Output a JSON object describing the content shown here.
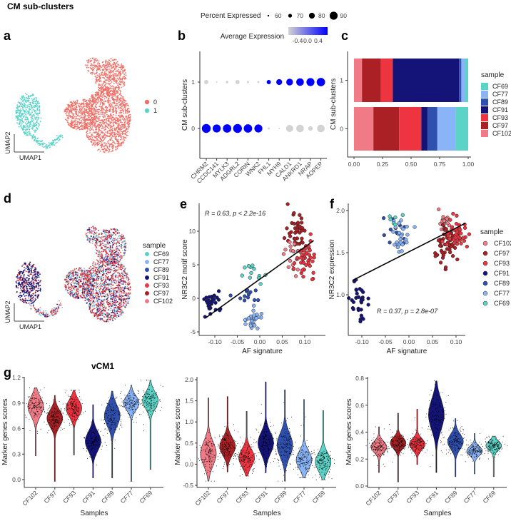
{
  "title": "CM sub-clusters",
  "colors": {
    "cluster0": "#F07068",
    "cluster1": "#5BD3C7",
    "CF69": "#5BD3C7",
    "CF77": "#8AB4F8",
    "CF89": "#3050B0",
    "CF91": "#141478",
    "CF93": "#EE3440",
    "CF97": "#AA2024",
    "CF102": "#F07A85",
    "expr_low": "#D3D3D3",
    "expr_high": "#0000FF"
  },
  "chart_data": [
    {
      "panel": "a",
      "type": "scatter",
      "xlabel": "UMAP1",
      "ylabel": "UMAP2",
      "legend": [
        "0",
        "1"
      ],
      "legend_position": "right",
      "approx_cells": {
        "0": 2400,
        "1": 520
      }
    },
    {
      "panel": "b",
      "type": "scatter",
      "subtype": "dotplot",
      "ylabel": "CM sub-clusters",
      "categories": [
        "CHRM2",
        "CCDC141",
        "MYLK3",
        "ADGRL2",
        "CORIN",
        "WNK2",
        "FHL1",
        "MYH9",
        "CALD1",
        "ANKRD1",
        "NRAP",
        "AOPEP"
      ],
      "rows": [
        "1",
        "0"
      ],
      "size_legend": {
        "title": "Percent Expressed",
        "values": [
          "60",
          "70",
          "80",
          "90"
        ]
      },
      "color_legend": {
        "title": "Average Expression",
        "ticks": [
          "-0.4",
          "0.0",
          "0.4"
        ],
        "range": [
          -0.5,
          0.5
        ]
      },
      "series": [
        {
          "name": "1",
          "avg_expression": [
            -0.5,
            -0.5,
            -0.5,
            -0.5,
            -0.5,
            -0.5,
            0.5,
            0.5,
            0.5,
            0.5,
            0.5,
            0.5
          ],
          "pct_expressed": [
            72,
            56,
            64,
            72,
            62,
            62,
            72,
            80,
            84,
            88,
            90,
            92
          ]
        },
        {
          "name": "0",
          "avg_expression": [
            0.5,
            0.5,
            0.5,
            0.5,
            0.5,
            0.5,
            -0.5,
            -0.5,
            -0.5,
            -0.5,
            -0.5,
            -0.5
          ],
          "pct_expressed": [
            94,
            90,
            92,
            94,
            92,
            90,
            62,
            56,
            86,
            88,
            74,
            88
          ]
        }
      ]
    },
    {
      "panel": "c",
      "type": "bar",
      "orientation": "horizontal",
      "stacked": true,
      "ylabel": "CM sub-clusters",
      "xlim": [
        0,
        1
      ],
      "xticks": [
        "0.00",
        "0.25",
        "0.50",
        "0.75",
        "1.00"
      ],
      "categories": [
        "1",
        "0"
      ],
      "legend_title": "sample",
      "legend": [
        "CF69",
        "CF77",
        "CF89",
        "CF91",
        "CF93",
        "CF97",
        "CF102"
      ],
      "series": [
        {
          "name": "CF102",
          "values": [
            0.07,
            0.17
          ]
        },
        {
          "name": "CF97",
          "values": [
            0.165,
            0.225
          ]
        },
        {
          "name": "CF93",
          "values": [
            0.105,
            0.195
          ]
        },
        {
          "name": "CF91",
          "values": [
            0.58,
            0.055
          ]
        },
        {
          "name": "CF89",
          "values": [
            0.02,
            0.085
          ]
        },
        {
          "name": "CF77",
          "values": [
            0.035,
            0.16
          ]
        },
        {
          "name": "CF69",
          "values": [
            0.025,
            0.11
          ]
        }
      ]
    },
    {
      "panel": "d",
      "type": "scatter",
      "xlabel": "UMAP1",
      "ylabel": "UMAP2",
      "legend_title": "sample",
      "legend": [
        "CF69",
        "CF77",
        "CF89",
        "CF91",
        "CF93",
        "CF97",
        "CF102"
      ]
    },
    {
      "panel": "e",
      "type": "scatter",
      "xlabel": "AF signature",
      "ylabel": "NR3C2 motif score",
      "xticks": [
        "-0.10",
        "-0.05",
        "0.00",
        "0.05",
        "0.10"
      ],
      "yticks": [
        "-5",
        "0",
        "5",
        "10"
      ],
      "annotation": {
        "r": "R = 0.63, ",
        "p": "p < 2.2e-16"
      },
      "fit_line": {
        "x": [
          -0.12,
          0.12
        ],
        "y": [
          -2.9,
          8.6
        ]
      },
      "groups": [
        {
          "sample": "CF91",
          "x": -0.105,
          "y": -1.0,
          "sx": 0.008,
          "sy": 1.0,
          "n": 32
        },
        {
          "sample": "CF89",
          "x": -0.03,
          "y": 0.6,
          "sx": 0.015,
          "sy": 0.7,
          "n": 12
        },
        {
          "sample": "CF69",
          "x": -0.018,
          "y": 3.6,
          "sx": 0.012,
          "sy": 0.9,
          "n": 12
        },
        {
          "sample": "CF77",
          "x": -0.015,
          "y": -3.0,
          "sx": 0.01,
          "sy": 0.8,
          "n": 26
        },
        {
          "sample": "CF97",
          "x": 0.083,
          "y": 10.0,
          "sx": 0.01,
          "sy": 1.3,
          "n": 40
        },
        {
          "sample": "CF102",
          "x": 0.078,
          "y": 6.2,
          "sx": 0.01,
          "sy": 1.2,
          "n": 20
        },
        {
          "sample": "CF93",
          "x": 0.1,
          "y": 6.0,
          "sx": 0.01,
          "sy": 1.4,
          "n": 40
        }
      ]
    },
    {
      "panel": "f",
      "type": "scatter",
      "xlabel": "AF signature",
      "ylabel": "NR3C2 expression",
      "xticks": [
        "-0.10",
        "-0.05",
        "0.00",
        "0.05",
        "0.10"
      ],
      "yticks": [
        "1.0",
        "1.5",
        "2.0"
      ],
      "annotation": {
        "r": "R = 0.37, ",
        "p": "p = 2.8e-07"
      },
      "fit_line": {
        "x": [
          -0.12,
          0.12
        ],
        "y": [
          1.17,
          1.85
        ]
      },
      "legend_title": "sample",
      "legend": [
        "CF102",
        "CF97",
        "CF93",
        "CF91",
        "CF89",
        "CF77",
        "CF69"
      ],
      "groups": [
        {
          "sample": "CF91",
          "x": -0.105,
          "y": 0.92,
          "sx": 0.008,
          "sy": 0.14,
          "n": 32
        },
        {
          "sample": "CF89",
          "x": -0.03,
          "y": 1.75,
          "sx": 0.015,
          "sy": 0.1,
          "n": 12
        },
        {
          "sample": "CF77",
          "x": -0.015,
          "y": 1.72,
          "sx": 0.012,
          "sy": 0.12,
          "n": 26
        },
        {
          "sample": "CF69",
          "x": -0.03,
          "y": 1.88,
          "sx": 0.015,
          "sy": 0.08,
          "n": 6
        },
        {
          "sample": "CF102",
          "x": 0.075,
          "y": 1.86,
          "sx": 0.008,
          "sy": 0.06,
          "n": 20
        },
        {
          "sample": "CF97",
          "x": 0.08,
          "y": 1.6,
          "sx": 0.01,
          "sy": 0.13,
          "n": 50
        },
        {
          "sample": "CF93",
          "x": 0.1,
          "y": 1.75,
          "sx": 0.01,
          "sy": 0.1,
          "n": 40
        }
      ]
    },
    {
      "panel": "g",
      "type": "violin",
      "title": "vCM1",
      "xlabel": "Samples",
      "ylabel": "Marker genes scores",
      "categories": [
        "CF102",
        "CF97",
        "CF93",
        "CF91",
        "CF89",
        "CF77",
        "CF69"
      ],
      "yticks": [
        "0.0",
        "0.3",
        "0.6",
        "0.9",
        "1.2"
      ],
      "ylim": [
        -0.07,
        1.2
      ],
      "median": [
        0.86,
        0.72,
        0.84,
        0.45,
        0.75,
        0.9,
        0.93
      ],
      "sd": [
        0.08,
        0.07,
        0.07,
        0.08,
        0.09,
        0.06,
        0.07
      ],
      "min": [
        0.28,
        -0.02,
        0.29,
        0.02,
        0.02,
        -0.02,
        0.12
      ],
      "max": [
        1.08,
        0.99,
        1.05,
        0.88,
        1.04,
        1.11,
        1.17
      ]
    },
    {
      "panel": "g2",
      "type": "violin",
      "xlabel": "Samples",
      "ylabel": "Marker genes scores",
      "categories": [
        "CF102",
        "CF97",
        "CF93",
        "CF91",
        "CF89",
        "CF77",
        "CF69"
      ],
      "yticks": [
        "-0.5",
        "0.0",
        "0.5",
        "1.0",
        "1.5",
        "2.0"
      ],
      "ylim": [
        -0.55,
        2.0
      ],
      "median": [
        0.25,
        0.42,
        0.15,
        0.5,
        0.45,
        0.1,
        0.05
      ],
      "sd": [
        0.2,
        0.15,
        0.15,
        0.18,
        0.2,
        0.15,
        0.15
      ],
      "min": [
        -0.4,
        -0.18,
        -0.28,
        -0.2,
        -0.4,
        -0.32,
        -0.37
      ],
      "max": [
        1.57,
        1.6,
        1.25,
        1.95,
        1.76,
        1.53,
        1.27
      ]
    },
    {
      "panel": "g3",
      "type": "violin",
      "xlabel": "Samples",
      "ylabel": "Marker genes scores",
      "categories": [
        "CF102",
        "CF97",
        "CF93",
        "CF91",
        "CF89",
        "CF77",
        "CF69"
      ],
      "yticks": [
        "0.0",
        "0.2",
        "0.4",
        "0.6",
        "0.8"
      ],
      "ylim": [
        -0.02,
        0.8
      ],
      "median": [
        0.29,
        0.32,
        0.31,
        0.53,
        0.33,
        0.26,
        0.3
      ],
      "sd": [
        0.03,
        0.03,
        0.03,
        0.08,
        0.04,
        0.025,
        0.025
      ],
      "min": [
        0.1,
        0.03,
        0.16,
        0.1,
        0.07,
        0.09,
        0.07
      ],
      "max": [
        0.44,
        0.54,
        0.57,
        0.78,
        0.5,
        0.39,
        0.37
      ]
    }
  ],
  "panel_labels": [
    "a",
    "b",
    "c",
    "d",
    "e",
    "f",
    "g"
  ]
}
